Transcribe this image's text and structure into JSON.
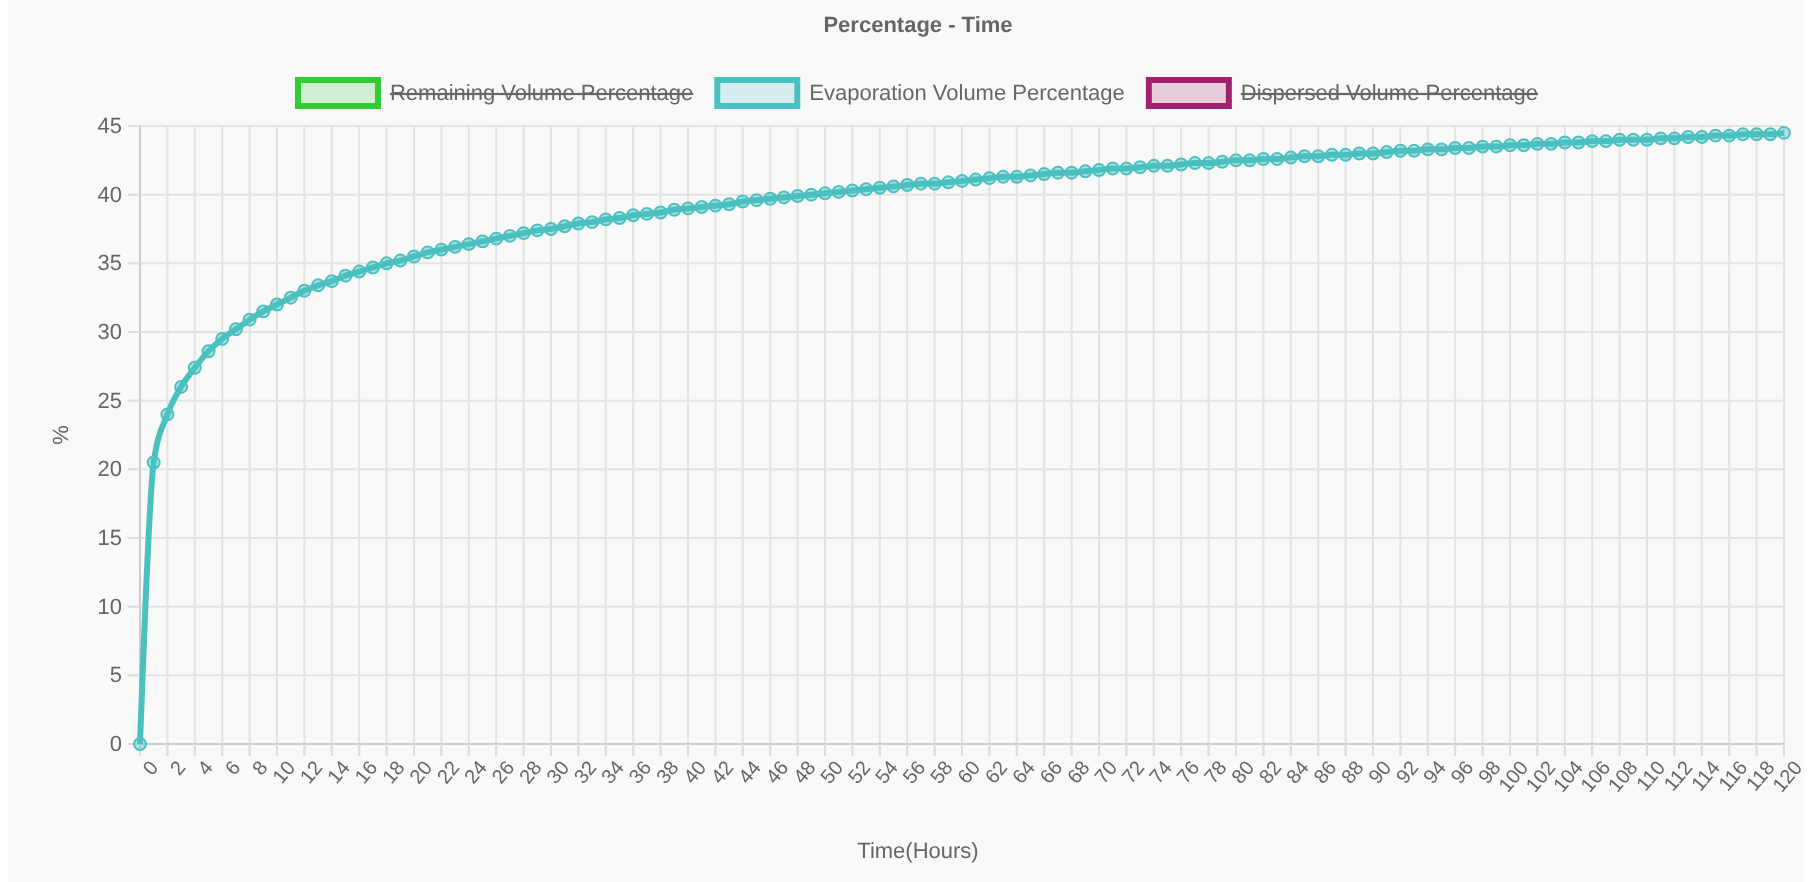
{
  "chart_data": {
    "type": "line",
    "title": "Percentage - Time",
    "xlabel": "Time(Hours)",
    "ylabel": "%",
    "x": [
      0,
      1,
      2,
      3,
      4,
      5,
      6,
      7,
      8,
      9,
      10,
      11,
      12,
      13,
      14,
      15,
      16,
      17,
      18,
      19,
      20,
      21,
      22,
      23,
      24,
      25,
      26,
      27,
      28,
      29,
      30,
      31,
      32,
      33,
      34,
      35,
      36,
      37,
      38,
      39,
      40,
      41,
      42,
      43,
      44,
      45,
      46,
      47,
      48,
      49,
      50,
      51,
      52,
      53,
      54,
      55,
      56,
      57,
      58,
      59,
      60,
      61,
      62,
      63,
      64,
      65,
      66,
      67,
      68,
      69,
      70,
      71,
      72,
      73,
      74,
      75,
      76,
      77,
      78,
      79,
      80,
      81,
      82,
      83,
      84,
      85,
      86,
      87,
      88,
      89,
      90,
      91,
      92,
      93,
      94,
      95,
      96,
      97,
      98,
      99,
      100,
      101,
      102,
      103,
      104,
      105,
      106,
      107,
      108,
      109,
      110,
      111,
      112,
      113,
      114,
      115,
      116,
      117,
      118,
      119,
      120
    ],
    "series": [
      {
        "name": "Remaining Volume Percentage",
        "color": "#33cc33",
        "values": [
          null,
          null,
          null,
          null,
          null,
          null,
          null,
          null,
          null,
          null,
          null,
          null,
          null,
          null,
          null,
          null,
          null,
          null,
          null,
          null,
          null,
          null,
          null,
          null,
          null,
          null,
          null,
          null,
          null,
          null,
          null,
          null,
          null,
          null,
          null,
          null,
          null,
          null,
          null,
          null,
          null,
          null,
          null,
          null,
          null,
          null,
          null,
          null,
          null,
          null,
          null,
          null,
          null,
          null,
          null,
          null,
          null,
          null,
          null,
          null,
          null,
          null,
          null,
          null,
          null,
          null,
          null,
          null,
          null,
          null,
          null,
          null,
          null,
          null,
          null,
          null,
          null,
          null,
          null,
          null,
          null,
          null,
          null,
          null,
          null,
          null,
          null,
          null,
          null,
          null,
          null,
          null,
          null,
          null,
          null,
          null,
          null,
          null,
          null,
          null,
          null,
          null,
          null,
          null,
          null,
          null,
          null,
          null,
          null,
          null,
          null,
          null,
          null,
          null,
          null,
          null,
          null,
          null,
          null,
          null,
          null
        ]
      },
      {
        "name": "Evaporation Volume Percentage",
        "color": "#4bc0c0",
        "values": [
          0,
          20.5,
          24.0,
          26.0,
          27.4,
          28.6,
          29.5,
          30.2,
          30.9,
          31.5,
          32.0,
          32.5,
          33.0,
          33.4,
          33.7,
          34.1,
          34.4,
          34.7,
          35.0,
          35.2,
          35.5,
          35.8,
          36.0,
          36.2,
          36.4,
          36.6,
          36.8,
          37.0,
          37.2,
          37.4,
          37.5,
          37.7,
          37.9,
          38.0,
          38.2,
          38.3,
          38.5,
          38.6,
          38.7,
          38.9,
          39.0,
          39.1,
          39.2,
          39.3,
          39.5,
          39.6,
          39.7,
          39.8,
          39.9,
          40.0,
          40.1,
          40.2,
          40.3,
          40.4,
          40.5,
          40.6,
          40.7,
          40.8,
          40.8,
          40.9,
          41.0,
          41.1,
          41.2,
          41.3,
          41.3,
          41.4,
          41.5,
          41.6,
          41.6,
          41.7,
          41.8,
          41.9,
          41.9,
          42.0,
          42.1,
          42.1,
          42.2,
          42.3,
          42.3,
          42.4,
          42.5,
          42.5,
          42.6,
          42.6,
          42.7,
          42.8,
          42.8,
          42.9,
          42.9,
          43.0,
          43.0,
          43.1,
          43.2,
          43.2,
          43.3,
          43.3,
          43.4,
          43.4,
          43.5,
          43.5,
          43.6,
          43.6,
          43.7,
          43.7,
          43.8,
          43.8,
          43.9,
          43.9,
          44.0,
          44.0,
          44.0,
          44.1,
          44.1,
          44.2,
          44.2,
          44.3,
          44.3,
          44.4,
          44.4,
          44.4,
          44.5
        ]
      },
      {
        "name": "Dispersed Volume Percentage",
        "color": "#a3206e",
        "values": [
          null,
          null,
          null,
          null,
          null,
          null,
          null,
          null,
          null,
          null,
          null,
          null,
          null,
          null,
          null,
          null,
          null,
          null,
          null,
          null,
          null,
          null,
          null,
          null,
          null,
          null,
          null,
          null,
          null,
          null,
          null,
          null,
          null,
          null,
          null,
          null,
          null,
          null,
          null,
          null,
          null,
          null,
          null,
          null,
          null,
          null,
          null,
          null,
          null,
          null,
          null,
          null,
          null,
          null,
          null,
          null,
          null,
          null,
          null,
          null,
          null,
          null,
          null,
          null,
          null,
          null,
          null,
          null,
          null,
          null,
          null,
          null,
          null,
          null,
          null,
          null,
          null,
          null,
          null,
          null,
          null,
          null,
          null,
          null,
          null,
          null,
          null,
          null,
          null,
          null,
          null,
          null,
          null,
          null,
          null,
          null,
          null,
          null,
          null,
          null,
          null,
          null,
          null,
          null,
          null,
          null,
          null,
          null,
          null,
          null,
          null,
          null,
          null,
          null,
          null,
          null,
          null,
          null,
          null,
          null,
          null
        ]
      }
    ],
    "xlim": [
      0,
      120
    ],
    "xticks": [
      0,
      2,
      4,
      6,
      8,
      10,
      12,
      14,
      16,
      18,
      20,
      22,
      24,
      26,
      28,
      30,
      32,
      34,
      36,
      38,
      40,
      42,
      44,
      46,
      48,
      50,
      52,
      54,
      56,
      58,
      60,
      62,
      64,
      66,
      68,
      70,
      72,
      74,
      76,
      78,
      80,
      82,
      84,
      86,
      88,
      90,
      92,
      94,
      96,
      98,
      100,
      102,
      104,
      106,
      108,
      110,
      112,
      114,
      116,
      118,
      120
    ],
    "ylim": [
      0,
      45
    ],
    "yticks": [
      0,
      5,
      10,
      15,
      20,
      25,
      30,
      35,
      40,
      45
    ],
    "grid": true,
    "legend": "top",
    "marker": "circle",
    "line_style": "solid"
  }
}
